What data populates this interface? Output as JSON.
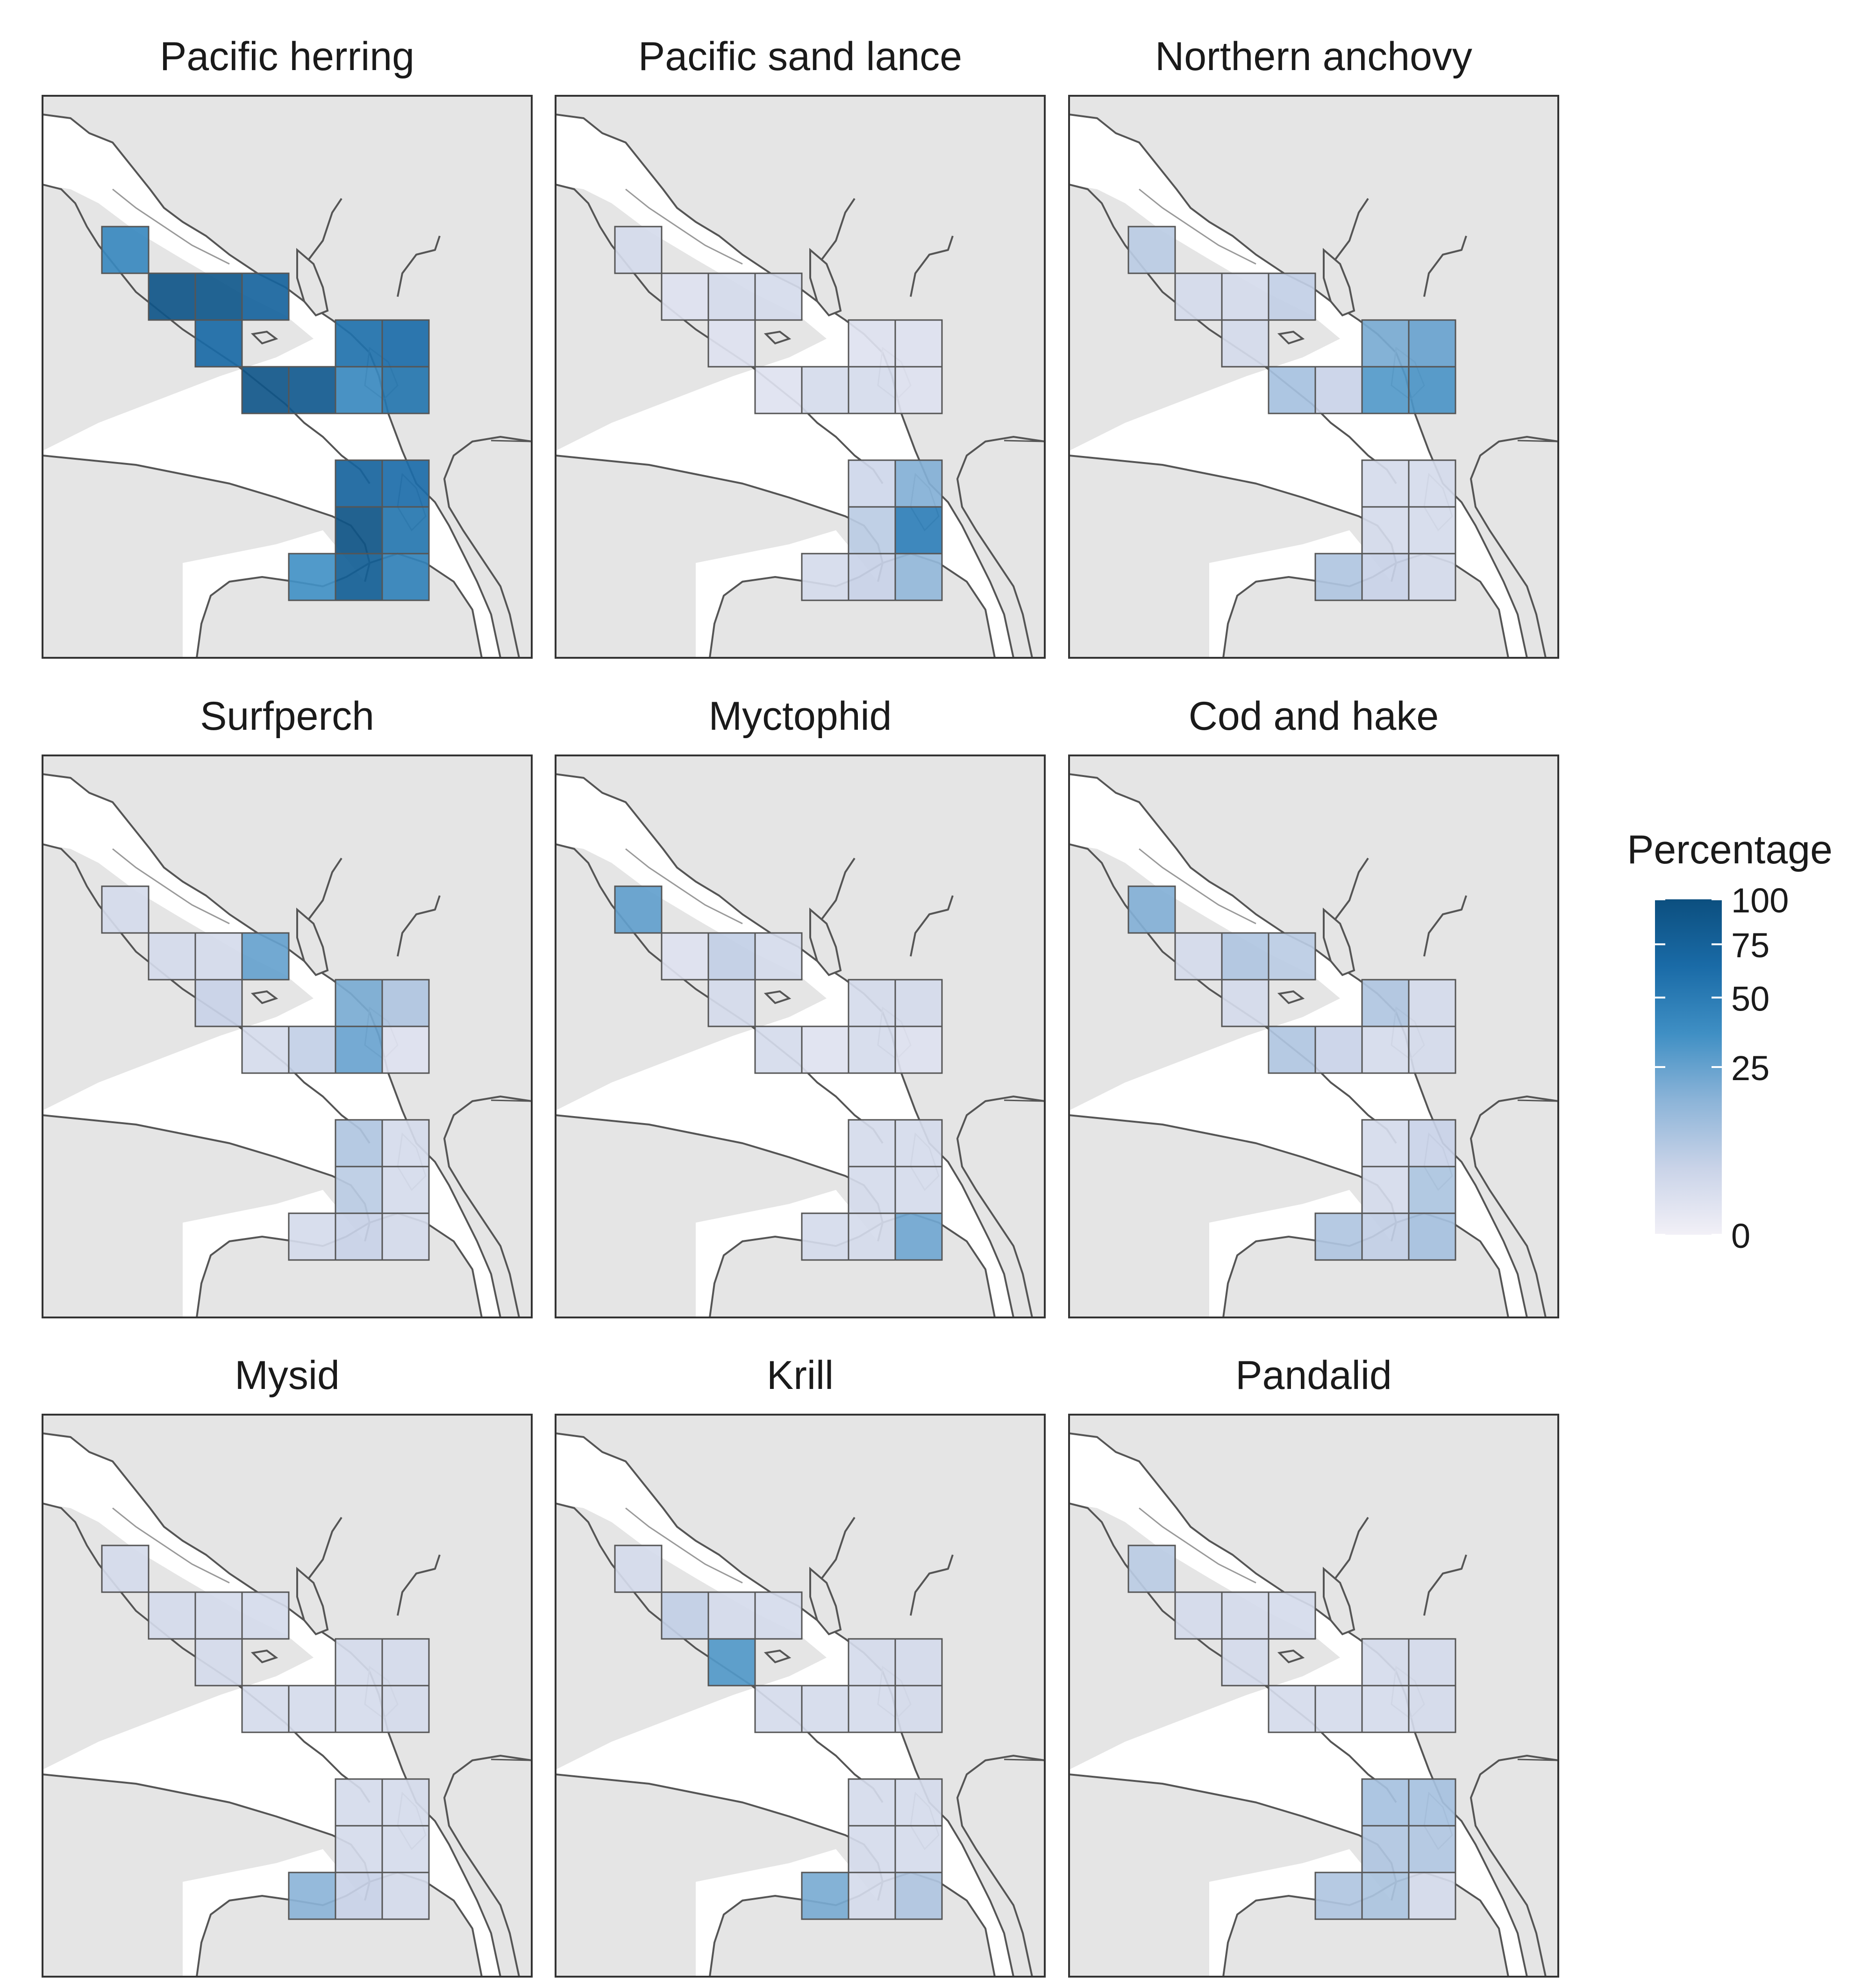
{
  "legend": {
    "title": "Percentage",
    "ticks": [
      {
        "label": "100",
        "value": 100
      },
      {
        "label": "75",
        "value": 75
      },
      {
        "label": "50",
        "value": 50
      },
      {
        "label": "25",
        "value": 25
      },
      {
        "label": "0",
        "value": 0
      }
    ],
    "colors": [
      "#f2f0f7",
      "#c9d3e8",
      "#8cb4d8",
      "#3f8fc4",
      "#1a6ba7",
      "#0c4f7f"
    ]
  },
  "grid_cells": [
    [
      0,
      0
    ],
    [
      1,
      1
    ],
    [
      2,
      1
    ],
    [
      3,
      1
    ],
    [
      2,
      2
    ],
    [
      5,
      2
    ],
    [
      6,
      2
    ],
    [
      3,
      3
    ],
    [
      4,
      3
    ],
    [
      5,
      3
    ],
    [
      6,
      3
    ],
    [
      5,
      5
    ],
    [
      6,
      5
    ],
    [
      5,
      6
    ],
    [
      6,
      6
    ],
    [
      4,
      7
    ],
    [
      5,
      7
    ],
    [
      6,
      7
    ]
  ],
  "panels": [
    {
      "title": "Pacific herring",
      "values": [
        40,
        90,
        88,
        72,
        65,
        58,
        62,
        90,
        86,
        40,
        55,
        72,
        62,
        92,
        55,
        35,
        78,
        45
      ]
    },
    {
      "title": "Pacific sand lance",
      "values": [
        2,
        1,
        2,
        2,
        1,
        1,
        1,
        1,
        2,
        2,
        1,
        3,
        18,
        6,
        48,
        2,
        4,
        14
      ]
    },
    {
      "title": "Northern anchovy",
      "values": [
        6,
        2,
        2,
        5,
        2,
        20,
        24,
        10,
        4,
        30,
        32,
        2,
        2,
        2,
        2,
        8,
        4,
        2
      ]
    },
    {
      "title": "Surfperch",
      "values": [
        2,
        2,
        2,
        25,
        4,
        20,
        8,
        2,
        5,
        24,
        1,
        8,
        2,
        6,
        2,
        2,
        4,
        2
      ]
    },
    {
      "title": "Myctophid",
      "values": [
        26,
        1,
        5,
        2,
        2,
        2,
        2,
        2,
        1,
        2,
        1,
        2,
        2,
        2,
        2,
        2,
        2,
        22
      ]
    },
    {
      "title": "Cod and hake",
      "values": [
        18,
        2,
        8,
        6,
        2,
        8,
        2,
        8,
        4,
        2,
        2,
        2,
        4,
        2,
        9,
        8,
        5,
        10
      ]
    },
    {
      "title": "Mysid",
      "values": [
        2,
        2,
        2,
        2,
        2,
        2,
        2,
        2,
        2,
        2,
        2,
        2,
        2,
        2,
        2,
        16,
        4,
        2
      ]
    },
    {
      "title": "Krill",
      "values": [
        2,
        5,
        2,
        2,
        30,
        2,
        2,
        2,
        2,
        2,
        2,
        2,
        2,
        2,
        2,
        20,
        2,
        8
      ]
    },
    {
      "title": "Pandalid",
      "values": [
        6,
        2,
        2,
        2,
        2,
        2,
        2,
        2,
        2,
        2,
        2,
        10,
        10,
        8,
        8,
        8,
        9,
        2
      ]
    }
  ]
}
